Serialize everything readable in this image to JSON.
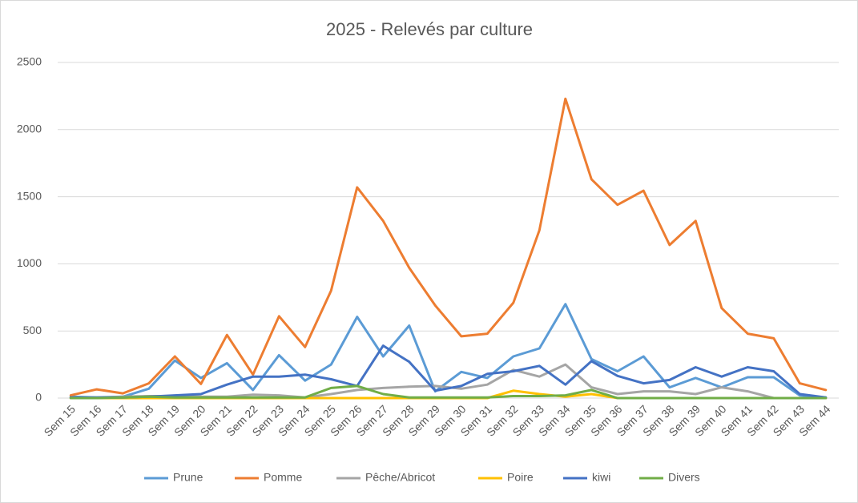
{
  "chart_data": {
    "type": "line",
    "title": "2025 - Relevés par culture",
    "categories": [
      "Sem 15",
      "Sem 16",
      "Sem 17",
      "Sem 18",
      "Sem 19",
      "Sem 20",
      "Sem 21",
      "Sem 22",
      "Sem 23",
      "Sem 24",
      "Sem 25",
      "Sem 26",
      "Sem 27",
      "Sem 28",
      "Sem 29",
      "Sem 30",
      "Sem 31",
      "Sem 32",
      "Sem 33",
      "Sem 34",
      "Sem 35",
      "Sem 36",
      "Sem 37",
      "Sem 38",
      "Sem 39",
      "Sem 40",
      "Sem 41",
      "Sem 42",
      "Sem 43",
      "Sem 44"
    ],
    "series": [
      {
        "name": "Prune",
        "color": "#5b9bd5",
        "values": [
          10,
          5,
          10,
          70,
          280,
          150,
          260,
          60,
          320,
          130,
          250,
          605,
          310,
          540,
          50,
          195,
          150,
          310,
          370,
          700,
          290,
          200,
          310,
          80,
          150,
          80,
          155,
          155,
          20,
          5
        ]
      },
      {
        "name": "Pomme",
        "color": "#ed7d31",
        "values": [
          20,
          65,
          35,
          110,
          310,
          105,
          470,
          175,
          610,
          380,
          800,
          1570,
          1320,
          970,
          690,
          460,
          480,
          710,
          1250,
          2230,
          1630,
          1440,
          1545,
          1140,
          1320,
          670,
          480,
          445,
          110,
          60
        ]
      },
      {
        "name": "Pêche/Abricot",
        "color": "#a5a5a5",
        "values": [
          0,
          0,
          10,
          15,
          15,
          10,
          10,
          25,
          20,
          5,
          30,
          60,
          75,
          85,
          90,
          70,
          100,
          210,
          160,
          250,
          80,
          30,
          50,
          50,
          30,
          80,
          50,
          0,
          0,
          0
        ]
      },
      {
        "name": "Poire",
        "color": "#ffc000",
        "values": [
          0,
          0,
          0,
          0,
          0,
          0,
          0,
          0,
          0,
          0,
          0,
          0,
          0,
          0,
          0,
          0,
          0,
          55,
          30,
          10,
          30,
          0,
          0,
          0,
          0,
          0,
          0,
          0,
          0,
          0
        ]
      },
      {
        "name": "kiwi",
        "color": "#4472c4",
        "values": [
          5,
          5,
          5,
          10,
          20,
          30,
          100,
          160,
          160,
          175,
          140,
          90,
          390,
          270,
          55,
          90,
          180,
          200,
          240,
          100,
          275,
          165,
          110,
          135,
          230,
          160,
          230,
          200,
          30,
          5
        ]
      },
      {
        "name": "Divers",
        "color": "#70ad47",
        "values": [
          0,
          0,
          5,
          10,
          5,
          5,
          5,
          5,
          5,
          5,
          75,
          90,
          30,
          5,
          5,
          5,
          5,
          15,
          15,
          20,
          60,
          0,
          0,
          0,
          0,
          0,
          0,
          0,
          0,
          0
        ]
      }
    ],
    "ylim": [
      0,
      2500
    ],
    "yticks": [
      0,
      500,
      1000,
      1500,
      2000,
      2500
    ],
    "grid": true,
    "legend": "bottom"
  }
}
